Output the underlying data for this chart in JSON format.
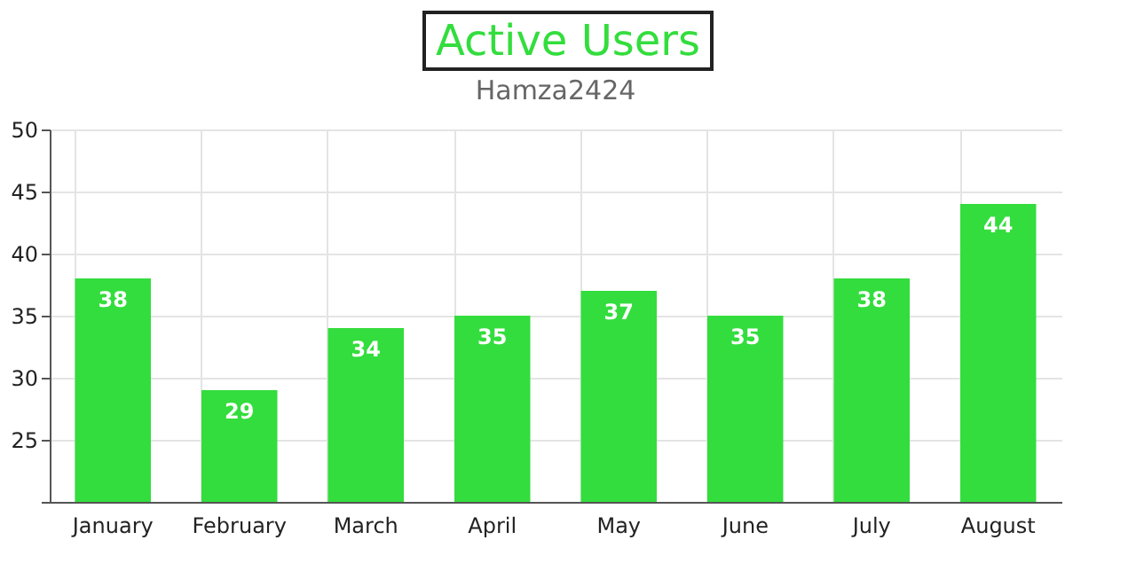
{
  "chart_data": {
    "type": "bar",
    "title": "Active Users",
    "subtitle": "Hamza2424",
    "categories": [
      "January",
      "February",
      "March",
      "April",
      "May",
      "June",
      "July",
      "August"
    ],
    "values": [
      38,
      29,
      34,
      35,
      37,
      35,
      38,
      44
    ],
    "color": "#33dd3d",
    "ylim": [
      20,
      50
    ],
    "yticks": [
      {
        "value": 20,
        "label": null
      },
      25,
      30,
      35,
      40,
      45,
      50
    ],
    "grid": true,
    "data_labels": true
  }
}
